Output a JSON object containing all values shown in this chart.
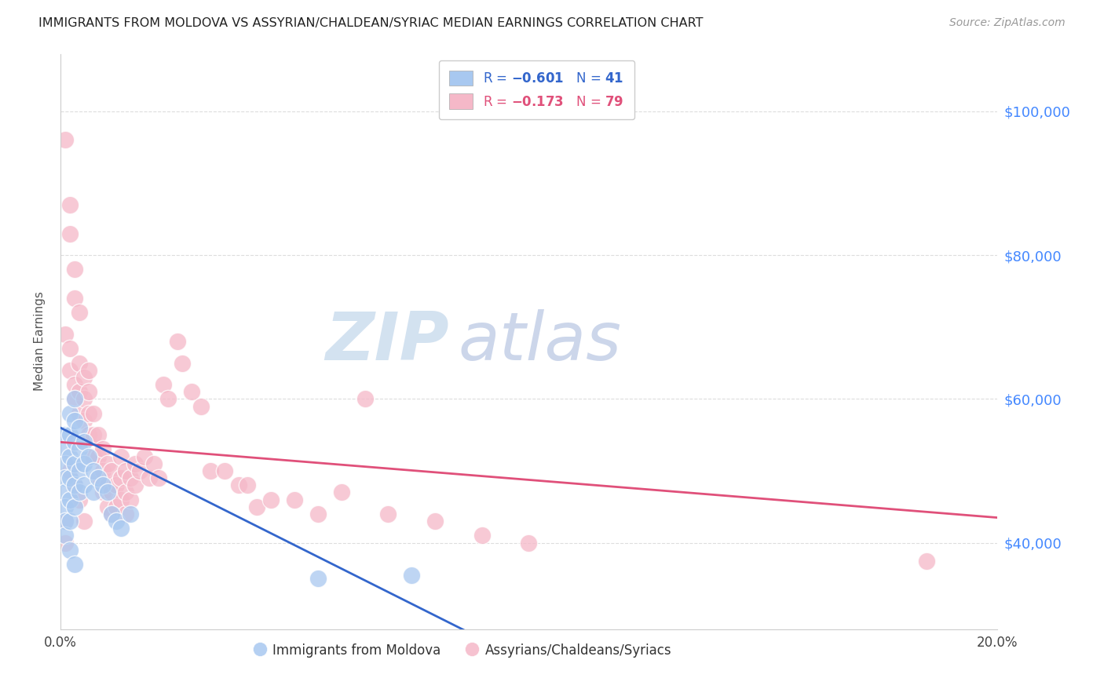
{
  "title": "IMMIGRANTS FROM MOLDOVA VS ASSYRIAN/CHALDEAN/SYRIAC MEDIAN EARNINGS CORRELATION CHART",
  "source": "Source: ZipAtlas.com",
  "ylabel": "Median Earnings",
  "xlim": [
    0.0,
    0.2
  ],
  "ylim": [
    28000,
    108000
  ],
  "yticks": [
    40000,
    60000,
    80000,
    100000
  ],
  "ytick_labels": [
    "$40,000",
    "$60,000",
    "$80,000",
    "$100,000"
  ],
  "xticks": [
    0.0,
    0.05,
    0.1,
    0.15,
    0.2
  ],
  "xtick_labels": [
    "0.0%",
    "",
    "",
    "",
    "20.0%"
  ],
  "blue_color": "#a8c8f0",
  "pink_color": "#f5b8c8",
  "blue_line_color": "#3366cc",
  "pink_line_color": "#e0507a",
  "watermark_zip": "ZIP",
  "watermark_atlas": "atlas",
  "background_color": "#ffffff",
  "grid_color": "#dddddd",
  "title_color": "#222222",
  "axis_label_color": "#555555",
  "right_axis_color": "#4488ff",
  "blue_line": [
    [
      0.0,
      56000
    ],
    [
      0.098,
      24000
    ]
  ],
  "pink_line": [
    [
      0.0,
      54000
    ],
    [
      0.2,
      43500
    ]
  ],
  "blue_scatter": [
    [
      0.001,
      55000
    ],
    [
      0.001,
      53000
    ],
    [
      0.001,
      51000
    ],
    [
      0.001,
      49000
    ],
    [
      0.001,
      47000
    ],
    [
      0.001,
      45000
    ],
    [
      0.001,
      43000
    ],
    [
      0.001,
      41000
    ],
    [
      0.002,
      58000
    ],
    [
      0.002,
      55000
    ],
    [
      0.002,
      52000
    ],
    [
      0.002,
      49000
    ],
    [
      0.002,
      46000
    ],
    [
      0.002,
      43000
    ],
    [
      0.003,
      60000
    ],
    [
      0.003,
      57000
    ],
    [
      0.003,
      54000
    ],
    [
      0.003,
      51000
    ],
    [
      0.003,
      48000
    ],
    [
      0.003,
      45000
    ],
    [
      0.004,
      56000
    ],
    [
      0.004,
      53000
    ],
    [
      0.004,
      50000
    ],
    [
      0.004,
      47000
    ],
    [
      0.005,
      54000
    ],
    [
      0.005,
      51000
    ],
    [
      0.005,
      48000
    ],
    [
      0.006,
      52000
    ],
    [
      0.007,
      50000
    ],
    [
      0.007,
      47000
    ],
    [
      0.008,
      49000
    ],
    [
      0.009,
      48000
    ],
    [
      0.01,
      47000
    ],
    [
      0.011,
      44000
    ],
    [
      0.012,
      43000
    ],
    [
      0.013,
      42000
    ],
    [
      0.015,
      44000
    ],
    [
      0.002,
      39000
    ],
    [
      0.003,
      37000
    ],
    [
      0.055,
      35000
    ],
    [
      0.075,
      35500
    ]
  ],
  "pink_scatter": [
    [
      0.001,
      96000
    ],
    [
      0.002,
      87000
    ],
    [
      0.002,
      83000
    ],
    [
      0.003,
      78000
    ],
    [
      0.003,
      74000
    ],
    [
      0.001,
      69000
    ],
    [
      0.002,
      67000
    ],
    [
      0.004,
      72000
    ],
    [
      0.002,
      64000
    ],
    [
      0.003,
      62000
    ],
    [
      0.003,
      60000
    ],
    [
      0.004,
      65000
    ],
    [
      0.004,
      61000
    ],
    [
      0.004,
      58000
    ],
    [
      0.005,
      63000
    ],
    [
      0.005,
      60000
    ],
    [
      0.005,
      57000
    ],
    [
      0.006,
      64000
    ],
    [
      0.006,
      61000
    ],
    [
      0.006,
      58000
    ],
    [
      0.006,
      55000
    ],
    [
      0.007,
      58000
    ],
    [
      0.007,
      55000
    ],
    [
      0.007,
      52000
    ],
    [
      0.008,
      55000
    ],
    [
      0.008,
      52000
    ],
    [
      0.008,
      49000
    ],
    [
      0.009,
      53000
    ],
    [
      0.009,
      50000
    ],
    [
      0.009,
      47000
    ],
    [
      0.01,
      51000
    ],
    [
      0.01,
      48000
    ],
    [
      0.01,
      45000
    ],
    [
      0.011,
      50000
    ],
    [
      0.011,
      47000
    ],
    [
      0.011,
      44000
    ],
    [
      0.012,
      48000
    ],
    [
      0.012,
      45000
    ],
    [
      0.013,
      52000
    ],
    [
      0.013,
      49000
    ],
    [
      0.013,
      46000
    ],
    [
      0.014,
      50000
    ],
    [
      0.014,
      47000
    ],
    [
      0.014,
      44000
    ],
    [
      0.015,
      49000
    ],
    [
      0.015,
      46000
    ],
    [
      0.016,
      51000
    ],
    [
      0.016,
      48000
    ],
    [
      0.017,
      50000
    ],
    [
      0.018,
      52000
    ],
    [
      0.019,
      49000
    ],
    [
      0.02,
      51000
    ],
    [
      0.021,
      49000
    ],
    [
      0.022,
      62000
    ],
    [
      0.023,
      60000
    ],
    [
      0.025,
      68000
    ],
    [
      0.026,
      65000
    ],
    [
      0.028,
      61000
    ],
    [
      0.03,
      59000
    ],
    [
      0.032,
      50000
    ],
    [
      0.035,
      50000
    ],
    [
      0.038,
      48000
    ],
    [
      0.04,
      48000
    ],
    [
      0.042,
      45000
    ],
    [
      0.045,
      46000
    ],
    [
      0.05,
      46000
    ],
    [
      0.055,
      44000
    ],
    [
      0.065,
      60000
    ],
    [
      0.07,
      44000
    ],
    [
      0.08,
      43000
    ],
    [
      0.09,
      41000
    ],
    [
      0.1,
      40000
    ],
    [
      0.001,
      43000
    ],
    [
      0.001,
      40000
    ],
    [
      0.002,
      50000
    ],
    [
      0.003,
      48000
    ],
    [
      0.004,
      46000
    ],
    [
      0.005,
      43000
    ],
    [
      0.185,
      37500
    ],
    [
      0.06,
      47000
    ]
  ]
}
